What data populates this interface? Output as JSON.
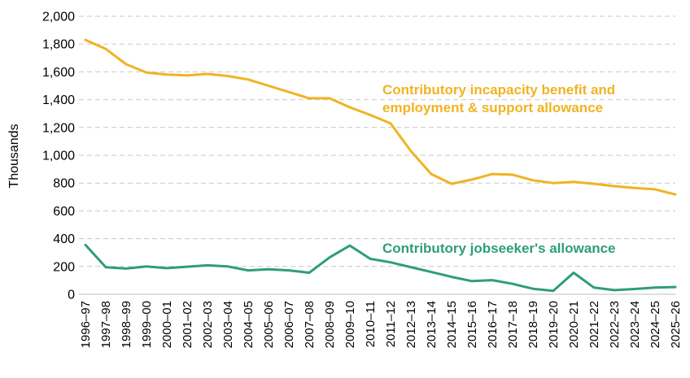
{
  "chart_data": {
    "type": "line",
    "ylabel": "Thousands",
    "xlabel": "",
    "ylim": [
      0,
      2000
    ],
    "yticks": [
      0,
      200,
      400,
      600,
      800,
      1000,
      1200,
      1400,
      1600,
      1800,
      2000
    ],
    "ytick_labels": [
      "0",
      "200",
      "400",
      "600",
      "800",
      "1,000",
      "1,200",
      "1,400",
      "1,600",
      "1,800",
      "2,000"
    ],
    "grid": true,
    "categories": [
      "1996–97",
      "1997–98",
      "1998–99",
      "1999–00",
      "2000–01",
      "2001–02",
      "2002–03",
      "2003–04",
      "2004–05",
      "2005–06",
      "2006–07",
      "2007–08",
      "2008–09",
      "2009–10",
      "2010–11",
      "2011–12",
      "2012–13",
      "2013–14",
      "2014–15",
      "2015–16",
      "2016–17",
      "2017–18",
      "2018–19",
      "2019–20",
      "2020–21",
      "2021–22",
      "2022–23",
      "2023–24",
      "2024–25",
      "2025–26"
    ],
    "series": [
      {
        "name": "Contributory incapacity benefit and employment & support allowance",
        "label_lines": [
          "Contributory incapacity benefit and",
          "employment & support allowance"
        ],
        "color": "#f0b323",
        "values": [
          1830,
          1765,
          1655,
          1595,
          1580,
          1575,
          1585,
          1570,
          1545,
          1500,
          1455,
          1410,
          1410,
          1345,
          1290,
          1230,
          1030,
          865,
          795,
          825,
          865,
          860,
          820,
          800,
          808,
          795,
          778,
          765,
          755,
          718
        ]
      },
      {
        "name": "Contributory jobseeker's allowance",
        "label_lines": [
          "Contributory jobseeker's allowance"
        ],
        "color": "#2e9e77",
        "values": [
          355,
          195,
          185,
          200,
          188,
          198,
          208,
          200,
          172,
          180,
          172,
          155,
          265,
          350,
          255,
          230,
          195,
          160,
          125,
          95,
          102,
          75,
          40,
          25,
          155,
          48,
          30,
          38,
          48,
          52
        ]
      }
    ]
  }
}
